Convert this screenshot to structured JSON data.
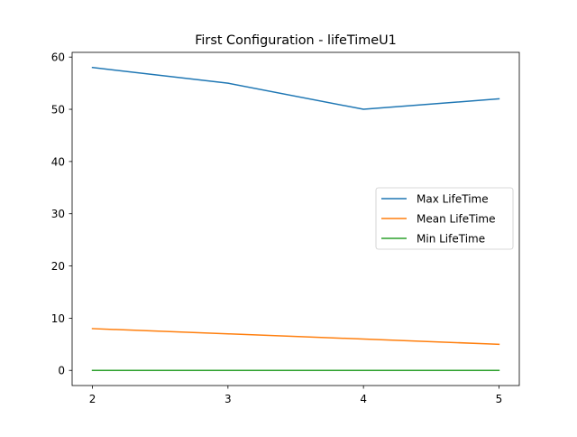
{
  "chart_data": {
    "type": "line",
    "title": "First Configuration - lifeTimeU1",
    "xlabel": "",
    "ylabel": "",
    "x": [
      2,
      3,
      4,
      5
    ],
    "x_ticks": [
      "2",
      "3",
      "4",
      "5"
    ],
    "xlim": [
      1.85,
      5.15
    ],
    "y_ticks": [
      "0",
      "10",
      "20",
      "30",
      "40",
      "50",
      "60"
    ],
    "ylim": [
      -2.9,
      60.9
    ],
    "grid": false,
    "legend_position": "center-right",
    "series": [
      {
        "name": "Max LifeTime",
        "values": [
          58,
          55,
          50,
          52
        ],
        "color": "#1f77b4"
      },
      {
        "name": "Mean LifeTime",
        "values": [
          8,
          7,
          6,
          5
        ],
        "color": "#ff7f0e"
      },
      {
        "name": "Min LifeTime",
        "values": [
          0,
          0,
          0,
          0
        ],
        "color": "#2ca02c"
      }
    ]
  }
}
